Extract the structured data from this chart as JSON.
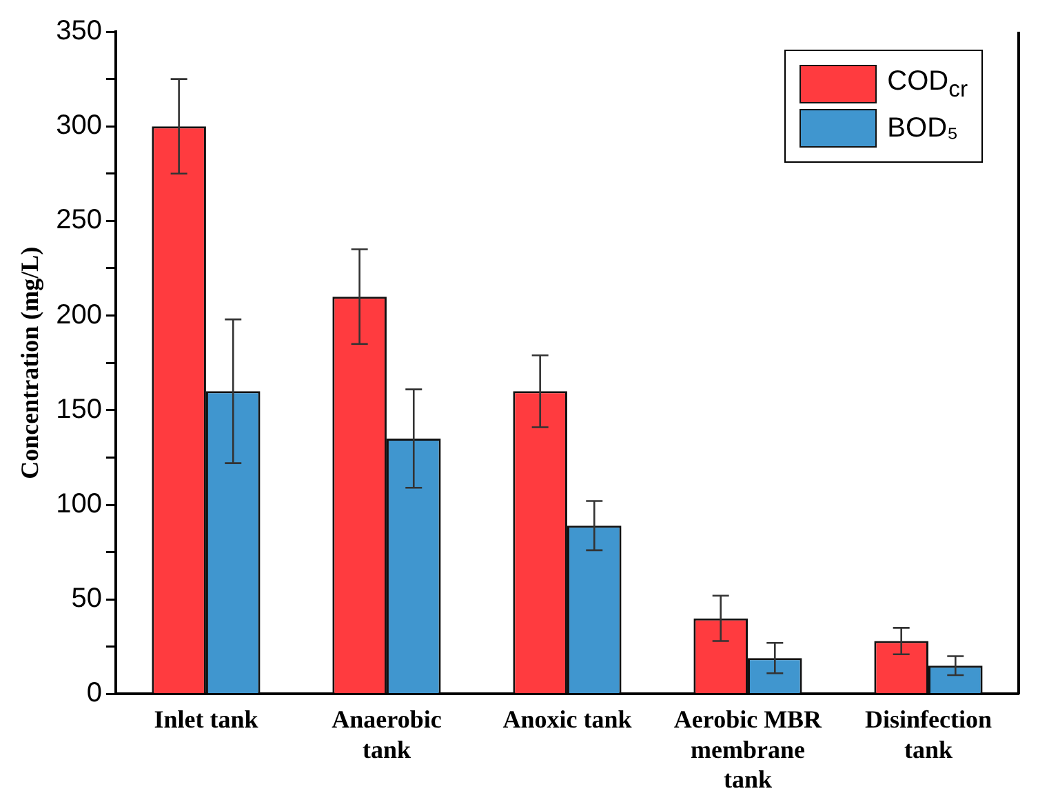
{
  "chart_data": {
    "type": "bar",
    "ylabel": "Concentration (mg/L)",
    "categories": [
      "Inlet tank",
      "Anaerobic tank",
      "Anoxic tank",
      "Aerobic MBR membrane tank",
      "Disinfection tank"
    ],
    "series": [
      {
        "name": "COD$_{cr}$",
        "color": "#ff3b3f",
        "values": [
          300,
          210,
          160,
          40,
          28
        ],
        "errors": [
          25,
          25,
          19,
          12,
          7
        ]
      },
      {
        "name": "BOD₅",
        "color": "#4096cf",
        "values": [
          160,
          135,
          89,
          19,
          15
        ],
        "errors": [
          38,
          26,
          13,
          8,
          5
        ]
      }
    ],
    "ylim": [
      0,
      350
    ],
    "yticks": [
      0,
      {
        "value": 25,
        "label": null
      },
      50,
      {
        "value": 75,
        "label": null
      },
      100,
      {
        "value": 125,
        "label": null
      },
      150,
      {
        "value": 175,
        "label": null
      },
      200,
      {
        "value": 225,
        "label": null
      },
      250,
      {
        "value": 275,
        "label": null
      },
      300,
      {
        "value": 325,
        "label": null
      },
      350
    ],
    "grid": false,
    "legend": "top right"
  }
}
